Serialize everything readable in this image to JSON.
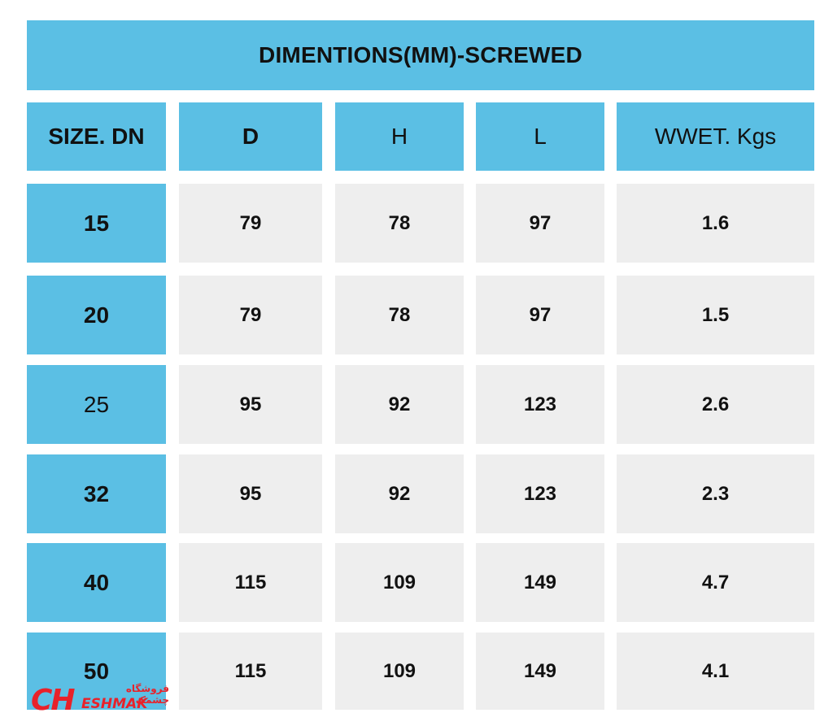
{
  "title": "DIMENTIONS(MM)-SCREWED",
  "headers": [
    "SIZE. DN",
    "D",
    "H",
    "L",
    "WWET. Kgs"
  ],
  "rows": [
    [
      "15",
      "79",
      "78",
      "97",
      "1.6"
    ],
    [
      "20",
      "79",
      "78",
      "97",
      "1.5"
    ],
    [
      "25",
      "95",
      "92",
      "123",
      "2.6"
    ],
    [
      "32",
      "95",
      "92",
      "123",
      "2.3"
    ],
    [
      "40",
      "115",
      "109",
      "149",
      "4.7"
    ],
    [
      "50",
      "115",
      "109",
      "149",
      "4.1"
    ]
  ],
  "logo": {
    "text_main": "CH",
    "text_sub": "ESHMAK",
    "text_top": "فروشگاه چشمک"
  },
  "colors": {
    "header_fill": "#5bbfe4",
    "cell_fill": "#eeeeee",
    "logo_red": "#e8222a"
  }
}
